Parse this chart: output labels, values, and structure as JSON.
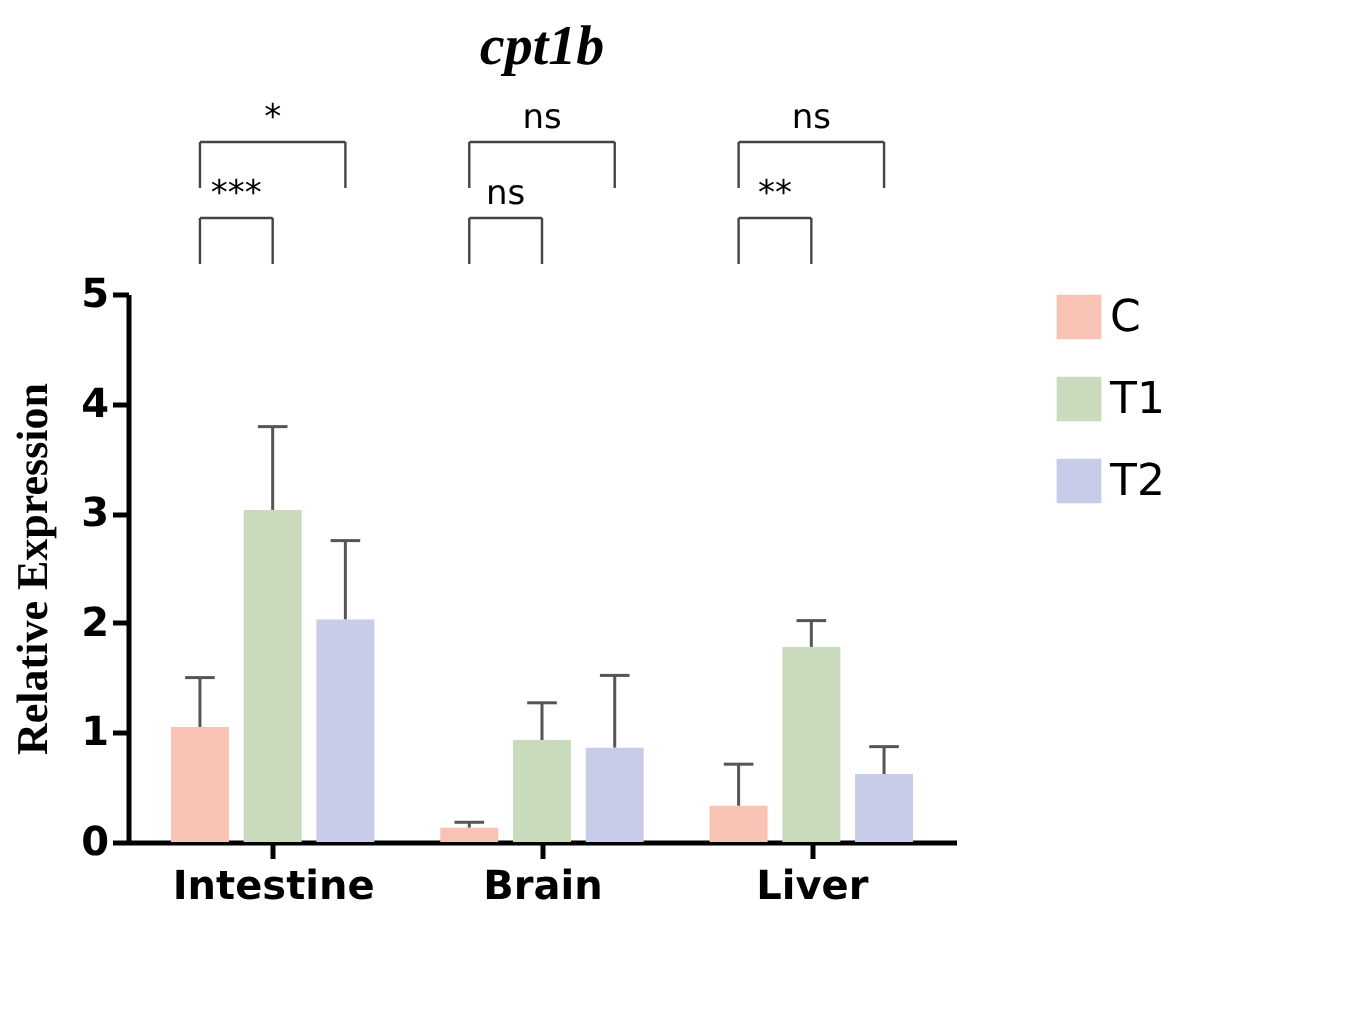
{
  "chart_data": {
    "type": "bar",
    "title": "cpt1b",
    "ylabel": "Relative Expression",
    "categories": [
      "Intestine",
      "Brain",
      "Liver"
    ],
    "series": [
      {
        "name": "C",
        "color": "#f8c3b5",
        "values": [
          1.05,
          0.13,
          0.33
        ],
        "errors": [
          0.45,
          0.05,
          0.38
        ]
      },
      {
        "name": "T1",
        "color": "#cadabd",
        "values": [
          3.03,
          0.93,
          1.78
        ],
        "errors": [
          0.76,
          0.34,
          0.24
        ]
      },
      {
        "name": "T2",
        "color": "#c9cce8",
        "values": [
          2.03,
          0.86,
          0.62
        ],
        "errors": [
          0.72,
          0.66,
          0.25
        ]
      }
    ],
    "ylim": [
      0,
      5
    ],
    "yticks": [
      0,
      1,
      2,
      3,
      4,
      5
    ],
    "grid": false,
    "legend": "right",
    "annotations": [
      "*",
      "ns",
      "ns",
      "***",
      "ns",
      "**"
    ]
  }
}
